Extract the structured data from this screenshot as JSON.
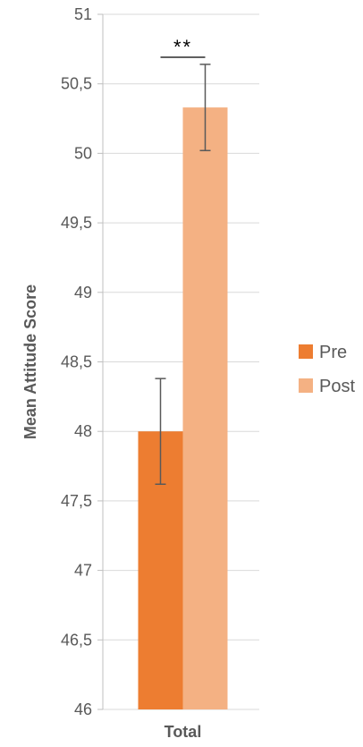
{
  "chart_data": {
    "type": "bar",
    "categories": [
      "Total"
    ],
    "series": [
      {
        "name": "Pre",
        "values": [
          48.0
        ],
        "error": [
          0.38
        ],
        "color": "#ed7d31"
      },
      {
        "name": "Post",
        "values": [
          50.33
        ],
        "error": [
          0.31
        ],
        "color": "#f4b183"
      }
    ],
    "ylabel": "Mean Attitude Score",
    "xlabel": "",
    "ylim": [
      46,
      51
    ],
    "yticks": [
      "46",
      "46,5",
      "47",
      "47,5",
      "48",
      "48,5",
      "49",
      "49,5",
      "50",
      "50,5",
      "51"
    ],
    "grid": true,
    "legend_position": "right",
    "significance": {
      "label": "**",
      "between": [
        "Pre",
        "Post"
      ],
      "category": "Total"
    }
  }
}
